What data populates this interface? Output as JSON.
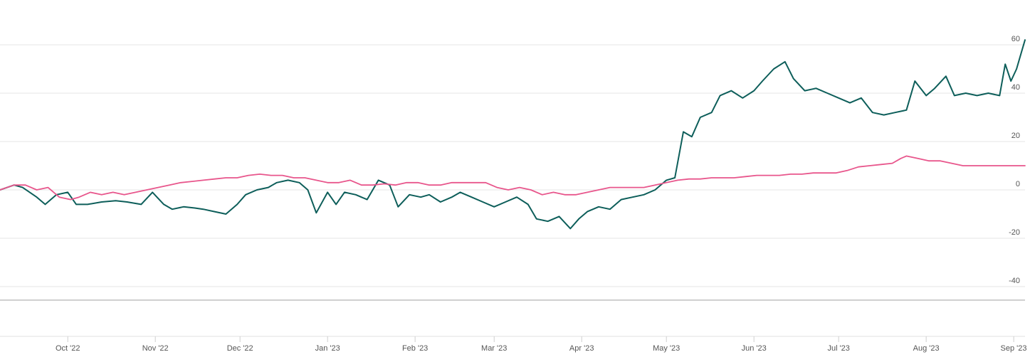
{
  "chart_data": {
    "type": "line",
    "title": "",
    "xlabel": "",
    "ylabel": "",
    "ylim": [
      -45,
      62
    ],
    "y_ticks": [
      60,
      40,
      20,
      0,
      -20,
      -40
    ],
    "y_tick_labels": [
      "60",
      "40",
      "20",
      "0",
      "-20",
      "-40"
    ],
    "x_tick_labels": [
      "Oct '22",
      "Nov '22",
      "Dec '22",
      "Jan '23",
      "Feb '23",
      "Mar '23",
      "Apr '23",
      "May '23",
      "Jun '23",
      "Jul '23",
      "Aug '23",
      "Sep '23"
    ],
    "x_tick_dates": [
      "2022-10-01",
      "2022-11-01",
      "2022-12-01",
      "2023-01-01",
      "2023-02-01",
      "2023-03-01",
      "2023-04-01",
      "2023-05-01",
      "2023-06-01",
      "2023-07-01",
      "2023-08-01",
      "2023-09-01"
    ],
    "x_range": [
      "2022-09-07",
      "2023-09-05"
    ],
    "grid": "horizontal",
    "legend": "none",
    "series": [
      {
        "color": "#0d5e5a",
        "points": [
          [
            "2022-09-07",
            0
          ],
          [
            "2022-09-12",
            2
          ],
          [
            "2022-09-15",
            1
          ],
          [
            "2022-09-20",
            -3
          ],
          [
            "2022-09-23",
            -6
          ],
          [
            "2022-09-27",
            -2
          ],
          [
            "2022-10-01",
            -1
          ],
          [
            "2022-10-04",
            -6
          ],
          [
            "2022-10-08",
            -6
          ],
          [
            "2022-10-13",
            -5
          ],
          [
            "2022-10-18",
            -4.5
          ],
          [
            "2022-10-22",
            -5
          ],
          [
            "2022-10-27",
            -6
          ],
          [
            "2022-10-31",
            -1
          ],
          [
            "2022-11-04",
            -6
          ],
          [
            "2022-11-07",
            -8
          ],
          [
            "2022-11-11",
            -7
          ],
          [
            "2022-11-15",
            -7.5
          ],
          [
            "2022-11-18",
            -8
          ],
          [
            "2022-11-22",
            -9
          ],
          [
            "2022-11-26",
            -10
          ],
          [
            "2022-11-30",
            -6
          ],
          [
            "2022-12-03",
            -2
          ],
          [
            "2022-12-07",
            0
          ],
          [
            "2022-12-11",
            1
          ],
          [
            "2022-12-14",
            3
          ],
          [
            "2022-12-18",
            4
          ],
          [
            "2022-12-22",
            3
          ],
          [
            "2022-12-25",
            0
          ],
          [
            "2022-12-28",
            -9.5
          ],
          [
            "2023-01-01",
            -1
          ],
          [
            "2023-01-04",
            -6
          ],
          [
            "2023-01-07",
            -1
          ],
          [
            "2023-01-11",
            -2
          ],
          [
            "2023-01-15",
            -4
          ],
          [
            "2023-01-19",
            4
          ],
          [
            "2023-01-23",
            2
          ],
          [
            "2023-01-26",
            -7
          ],
          [
            "2023-01-30",
            -2
          ],
          [
            "2023-02-03",
            -3
          ],
          [
            "2023-02-06",
            -2
          ],
          [
            "2023-02-10",
            -5
          ],
          [
            "2023-02-14",
            -3
          ],
          [
            "2023-02-17",
            -1
          ],
          [
            "2023-02-21",
            -3
          ],
          [
            "2023-02-25",
            -5
          ],
          [
            "2023-03-01",
            -7
          ],
          [
            "2023-03-05",
            -5
          ],
          [
            "2023-03-09",
            -3
          ],
          [
            "2023-03-13",
            -6
          ],
          [
            "2023-03-16",
            -12
          ],
          [
            "2023-03-20",
            -13
          ],
          [
            "2023-03-24",
            -11
          ],
          [
            "2023-03-28",
            -16
          ],
          [
            "2023-03-31",
            -12
          ],
          [
            "2023-04-03",
            -9
          ],
          [
            "2023-04-07",
            -7
          ],
          [
            "2023-04-11",
            -8
          ],
          [
            "2023-04-15",
            -4
          ],
          [
            "2023-04-19",
            -3
          ],
          [
            "2023-04-23",
            -2
          ],
          [
            "2023-04-27",
            0
          ],
          [
            "2023-05-01",
            4
          ],
          [
            "2023-05-04",
            5
          ],
          [
            "2023-05-07",
            24
          ],
          [
            "2023-05-10",
            22
          ],
          [
            "2023-05-13",
            30
          ],
          [
            "2023-05-17",
            32
          ],
          [
            "2023-05-20",
            39
          ],
          [
            "2023-05-24",
            41
          ],
          [
            "2023-05-28",
            38
          ],
          [
            "2023-06-01",
            41
          ],
          [
            "2023-06-04",
            45
          ],
          [
            "2023-06-08",
            50
          ],
          [
            "2023-06-12",
            53
          ],
          [
            "2023-06-15",
            46
          ],
          [
            "2023-06-19",
            41
          ],
          [
            "2023-06-23",
            42
          ],
          [
            "2023-06-27",
            40
          ],
          [
            "2023-07-01",
            38
          ],
          [
            "2023-07-05",
            36
          ],
          [
            "2023-07-09",
            38
          ],
          [
            "2023-07-13",
            32
          ],
          [
            "2023-07-17",
            31
          ],
          [
            "2023-07-21",
            32
          ],
          [
            "2023-07-25",
            33
          ],
          [
            "2023-07-28",
            45
          ],
          [
            "2023-08-01",
            39
          ],
          [
            "2023-08-04",
            42
          ],
          [
            "2023-08-08",
            47
          ],
          [
            "2023-08-11",
            39
          ],
          [
            "2023-08-15",
            40
          ],
          [
            "2023-08-19",
            39
          ],
          [
            "2023-08-23",
            40
          ],
          [
            "2023-08-27",
            39
          ],
          [
            "2023-08-29",
            52
          ],
          [
            "2023-08-31",
            45
          ],
          [
            "2023-09-02",
            50
          ],
          [
            "2023-09-04",
            58
          ],
          [
            "2023-09-05",
            62
          ]
        ]
      },
      {
        "color": "#e8568c",
        "points": [
          [
            "2022-09-07",
            0
          ],
          [
            "2022-09-12",
            2
          ],
          [
            "2022-09-16",
            2
          ],
          [
            "2022-09-20",
            0
          ],
          [
            "2022-09-24",
            1
          ],
          [
            "2022-09-28",
            -3
          ],
          [
            "2022-10-02",
            -4
          ],
          [
            "2022-10-05",
            -3
          ],
          [
            "2022-10-09",
            -1
          ],
          [
            "2022-10-13",
            -2
          ],
          [
            "2022-10-17",
            -1
          ],
          [
            "2022-10-21",
            -2
          ],
          [
            "2022-10-25",
            -1
          ],
          [
            "2022-10-29",
            0
          ],
          [
            "2022-11-02",
            1
          ],
          [
            "2022-11-06",
            2
          ],
          [
            "2022-11-10",
            3
          ],
          [
            "2022-11-14",
            3.5
          ],
          [
            "2022-11-18",
            4
          ],
          [
            "2022-11-22",
            4.5
          ],
          [
            "2022-11-26",
            5
          ],
          [
            "2022-11-30",
            5
          ],
          [
            "2022-12-04",
            6
          ],
          [
            "2022-12-08",
            6.5
          ],
          [
            "2022-12-12",
            6
          ],
          [
            "2022-12-16",
            6
          ],
          [
            "2022-12-20",
            5
          ],
          [
            "2022-12-24",
            5
          ],
          [
            "2022-12-28",
            4
          ],
          [
            "2023-01-01",
            3
          ],
          [
            "2023-01-05",
            3
          ],
          [
            "2023-01-09",
            4
          ],
          [
            "2023-01-13",
            2
          ],
          [
            "2023-01-17",
            2
          ],
          [
            "2023-01-21",
            2.5
          ],
          [
            "2023-01-25",
            2
          ],
          [
            "2023-01-29",
            3
          ],
          [
            "2023-02-02",
            3
          ],
          [
            "2023-02-06",
            2
          ],
          [
            "2023-02-10",
            2
          ],
          [
            "2023-02-14",
            3
          ],
          [
            "2023-02-18",
            3
          ],
          [
            "2023-02-22",
            3
          ],
          [
            "2023-02-26",
            3
          ],
          [
            "2023-03-02",
            1
          ],
          [
            "2023-03-06",
            0
          ],
          [
            "2023-03-10",
            1
          ],
          [
            "2023-03-14",
            0
          ],
          [
            "2023-03-18",
            -2
          ],
          [
            "2023-03-22",
            -1
          ],
          [
            "2023-03-26",
            -2
          ],
          [
            "2023-03-30",
            -2
          ],
          [
            "2023-04-03",
            -1
          ],
          [
            "2023-04-07",
            0
          ],
          [
            "2023-04-11",
            1
          ],
          [
            "2023-04-15",
            1
          ],
          [
            "2023-04-19",
            1
          ],
          [
            "2023-04-23",
            1
          ],
          [
            "2023-04-27",
            2
          ],
          [
            "2023-05-01",
            3
          ],
          [
            "2023-05-05",
            4
          ],
          [
            "2023-05-09",
            4.5
          ],
          [
            "2023-05-13",
            4.5
          ],
          [
            "2023-05-17",
            5
          ],
          [
            "2023-05-21",
            5
          ],
          [
            "2023-05-25",
            5
          ],
          [
            "2023-05-29",
            5.5
          ],
          [
            "2023-06-02",
            6
          ],
          [
            "2023-06-06",
            6
          ],
          [
            "2023-06-10",
            6
          ],
          [
            "2023-06-14",
            6.5
          ],
          [
            "2023-06-18",
            6.5
          ],
          [
            "2023-06-22",
            7
          ],
          [
            "2023-06-26",
            7
          ],
          [
            "2023-06-30",
            7
          ],
          [
            "2023-07-04",
            8
          ],
          [
            "2023-07-08",
            9.5
          ],
          [
            "2023-07-12",
            10
          ],
          [
            "2023-07-16",
            10.5
          ],
          [
            "2023-07-20",
            11
          ],
          [
            "2023-07-23",
            13
          ],
          [
            "2023-07-25",
            14
          ],
          [
            "2023-07-29",
            13
          ],
          [
            "2023-08-02",
            12
          ],
          [
            "2023-08-06",
            12
          ],
          [
            "2023-08-10",
            11
          ],
          [
            "2023-08-14",
            10
          ],
          [
            "2023-08-18",
            10
          ],
          [
            "2023-08-22",
            10
          ],
          [
            "2023-08-26",
            10
          ],
          [
            "2023-08-30",
            10
          ],
          [
            "2023-09-03",
            10
          ],
          [
            "2023-09-05",
            10
          ]
        ]
      }
    ]
  }
}
